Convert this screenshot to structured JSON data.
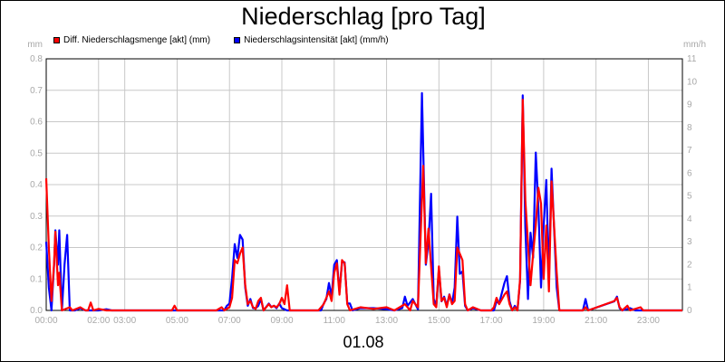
{
  "chart_data": {
    "type": "line",
    "title": "Niederschlag [pro Tag]",
    "xcaption": "01.08",
    "y_left": {
      "unit": "mm",
      "ylim": [
        0,
        0.8
      ],
      "ticks": [
        "0.0",
        "0.1",
        "0.2",
        "0.3",
        "0.4",
        "0.5",
        "0.6",
        "0.7",
        "0.8"
      ]
    },
    "y_right": {
      "unit": "mm/h",
      "ylim": [
        0,
        11
      ],
      "ticks": [
        "0",
        "1",
        "2",
        "3",
        "4",
        "5",
        "6",
        "7",
        "8",
        "9",
        "10",
        "11"
      ]
    },
    "x_range": [
      0,
      24.3
    ],
    "x_ticks": [
      {
        "h": 0,
        "label": "00:00"
      },
      {
        "h": 2,
        "label": "02:00"
      },
      {
        "h": 3,
        "label": "03:00"
      },
      {
        "h": 5,
        "label": "05:00"
      },
      {
        "h": 7,
        "label": "07:00"
      },
      {
        "h": 9,
        "label": "09:00"
      },
      {
        "h": 11,
        "label": "11:00"
      },
      {
        "h": 13,
        "label": "13:00"
      },
      {
        "h": 15,
        "label": "15:00"
      },
      {
        "h": 17,
        "label": "17:00"
      },
      {
        "h": 19,
        "label": "19:00"
      },
      {
        "h": 21,
        "label": "21:00"
      },
      {
        "h": 23,
        "label": "23:00"
      }
    ],
    "grid": true,
    "legend_position": "top-left",
    "series": [
      {
        "name": "Diff. Niederschlagsmenge [akt] (mm)",
        "color": "#ff0000",
        "axis": "left",
        "points": [
          [
            0,
            0.42
          ],
          [
            0.1,
            0.2
          ],
          [
            0.2,
            0.03
          ],
          [
            0.3,
            0.15
          ],
          [
            0.35,
            0.25
          ],
          [
            0.45,
            0.08
          ],
          [
            0.5,
            0.12
          ],
          [
            0.6,
            0
          ],
          [
            0.9,
            0.01
          ],
          [
            1.0,
            0
          ],
          [
            1.3,
            0.01
          ],
          [
            1.5,
            0
          ],
          [
            1.6,
            0
          ],
          [
            1.7,
            0.025
          ],
          [
            1.8,
            0
          ],
          [
            2.0,
            0.005
          ],
          [
            2.3,
            0
          ],
          [
            4.8,
            0
          ],
          [
            4.9,
            0.015
          ],
          [
            5.0,
            0
          ],
          [
            6.5,
            0
          ],
          [
            6.7,
            0.01
          ],
          [
            6.8,
            0
          ],
          [
            7.0,
            0.01
          ],
          [
            7.1,
            0.04
          ],
          [
            7.2,
            0.16
          ],
          [
            7.3,
            0.15
          ],
          [
            7.4,
            0.18
          ],
          [
            7.5,
            0.2
          ],
          [
            7.6,
            0.08
          ],
          [
            7.7,
            0.02
          ],
          [
            7.8,
            0.03
          ],
          [
            7.9,
            0.01
          ],
          [
            8.0,
            0.005
          ],
          [
            8.1,
            0.03
          ],
          [
            8.2,
            0.04
          ],
          [
            8.3,
            0
          ],
          [
            8.5,
            0.02
          ],
          [
            8.6,
            0.01
          ],
          [
            8.7,
            0.015
          ],
          [
            8.8,
            0.01
          ],
          [
            8.9,
            0.02
          ],
          [
            9.0,
            0.04
          ],
          [
            9.1,
            0.02
          ],
          [
            9.2,
            0.08
          ],
          [
            9.3,
            0
          ],
          [
            9.5,
            0
          ],
          [
            10.4,
            0
          ],
          [
            10.6,
            0.02
          ],
          [
            10.7,
            0.04
          ],
          [
            10.8,
            0.06
          ],
          [
            10.9,
            0.03
          ],
          [
            11.0,
            0.12
          ],
          [
            11.1,
            0.15
          ],
          [
            11.2,
            0.05
          ],
          [
            11.3,
            0.16
          ],
          [
            11.4,
            0.15
          ],
          [
            11.5,
            0.02
          ],
          [
            11.6,
            0
          ],
          [
            12.0,
            0.01
          ],
          [
            12.5,
            0.005
          ],
          [
            13.0,
            0.01
          ],
          [
            13.3,
            0
          ],
          [
            13.7,
            0.02
          ],
          [
            13.9,
            0
          ],
          [
            14.0,
            0.03
          ],
          [
            14.2,
            0.01
          ],
          [
            14.4,
            0.46
          ],
          [
            14.5,
            0.15
          ],
          [
            14.6,
            0.26
          ],
          [
            14.7,
            0.14
          ],
          [
            14.8,
            0.02
          ],
          [
            14.9,
            0.01
          ],
          [
            15.0,
            0.14
          ],
          [
            15.1,
            0.03
          ],
          [
            15.2,
            0.04
          ],
          [
            15.3,
            0.01
          ],
          [
            15.4,
            0.05
          ],
          [
            15.5,
            0.02
          ],
          [
            15.6,
            0.03
          ],
          [
            15.7,
            0.2
          ],
          [
            15.8,
            0.18
          ],
          [
            15.9,
            0.16
          ],
          [
            16.0,
            0.02
          ],
          [
            16.1,
            0
          ],
          [
            16.3,
            0.01
          ],
          [
            16.6,
            0
          ],
          [
            17.0,
            0
          ],
          [
            17.1,
            0.01
          ],
          [
            17.2,
            0.04
          ],
          [
            17.3,
            0.02
          ],
          [
            17.5,
            0.05
          ],
          [
            17.6,
            0.06
          ],
          [
            17.7,
            0.02
          ],
          [
            17.8,
            0
          ],
          [
            17.9,
            0.01
          ],
          [
            18.0,
            0
          ],
          [
            18.1,
            0.1
          ],
          [
            18.2,
            0.67
          ],
          [
            18.3,
            0.35
          ],
          [
            18.5,
            0.08
          ],
          [
            18.6,
            0.18
          ],
          [
            18.7,
            0.27
          ],
          [
            18.8,
            0.39
          ],
          [
            18.9,
            0.34
          ],
          [
            19.0,
            0.1
          ],
          [
            19.1,
            0.27
          ],
          [
            19.2,
            0.06
          ],
          [
            19.3,
            0.41
          ],
          [
            19.4,
            0.27
          ],
          [
            19.5,
            0.12
          ],
          [
            19.6,
            0
          ],
          [
            20.5,
            0
          ],
          [
            20.6,
            0.01
          ],
          [
            20.7,
            0
          ],
          [
            21.7,
            0.03
          ],
          [
            21.8,
            0.04
          ],
          [
            21.9,
            0.01
          ],
          [
            22.0,
            0
          ],
          [
            22.2,
            0.015
          ],
          [
            22.3,
            0
          ],
          [
            22.5,
            0.005
          ],
          [
            22.7,
            0.01
          ],
          [
            22.8,
            0
          ],
          [
            24.3,
            0
          ]
        ]
      },
      {
        "name": "Niederschlagsintensität [akt] (mm/h)",
        "color": "#0000ff",
        "axis": "right",
        "points": [
          [
            0,
            3.0
          ],
          [
            0.1,
            1.0
          ],
          [
            0.2,
            0
          ],
          [
            0.25,
            1.0
          ],
          [
            0.3,
            2.0
          ],
          [
            0.35,
            3.5
          ],
          [
            0.45,
            2.0
          ],
          [
            0.5,
            3.5
          ],
          [
            0.6,
            0
          ],
          [
            0.7,
            2.0
          ],
          [
            0.8,
            3.3
          ],
          [
            0.9,
            0
          ],
          [
            1.1,
            0
          ],
          [
            1.3,
            0.1
          ],
          [
            1.5,
            0
          ],
          [
            2.0,
            0
          ],
          [
            2.3,
            0.05
          ],
          [
            2.5,
            0
          ],
          [
            6.8,
            0
          ],
          [
            6.9,
            0.2
          ],
          [
            7.0,
            0.3
          ],
          [
            7.1,
            1.4
          ],
          [
            7.2,
            2.9
          ],
          [
            7.3,
            2.3
          ],
          [
            7.4,
            3.3
          ],
          [
            7.5,
            3.1
          ],
          [
            7.6,
            1.0
          ],
          [
            7.7,
            0.2
          ],
          [
            7.8,
            0.5
          ],
          [
            7.9,
            0.1
          ],
          [
            8.0,
            0.1
          ],
          [
            8.1,
            0.2
          ],
          [
            8.2,
            0.5
          ],
          [
            8.3,
            0
          ],
          [
            8.5,
            0.3
          ],
          [
            8.6,
            0.15
          ],
          [
            8.7,
            0.2
          ],
          [
            8.8,
            0.1
          ],
          [
            8.9,
            0.3
          ],
          [
            9.0,
            0.1
          ],
          [
            9.1,
            0.05
          ],
          [
            9.2,
            0
          ],
          [
            10.5,
            0
          ],
          [
            10.6,
            0.3
          ],
          [
            10.7,
            0.5
          ],
          [
            10.8,
            1.2
          ],
          [
            10.9,
            0.6
          ],
          [
            11.0,
            2.0
          ],
          [
            11.1,
            2.2
          ],
          [
            11.2,
            0.8
          ],
          [
            11.3,
            2.1
          ],
          [
            11.4,
            2.1
          ],
          [
            11.5,
            0.3
          ],
          [
            11.6,
            0.3
          ],
          [
            11.7,
            0
          ],
          [
            12.0,
            0.1
          ],
          [
            12.5,
            0.1
          ],
          [
            13.0,
            0.05
          ],
          [
            13.3,
            0
          ],
          [
            13.6,
            0.1
          ],
          [
            13.7,
            0.6
          ],
          [
            13.8,
            0.2
          ],
          [
            14.0,
            0.5
          ],
          [
            14.2,
            0.05
          ],
          [
            14.35,
            9.5
          ],
          [
            14.5,
            2.0
          ],
          [
            14.6,
            3.0
          ],
          [
            14.7,
            5.1
          ],
          [
            14.8,
            0.5
          ],
          [
            14.9,
            0.2
          ],
          [
            15.0,
            1.8
          ],
          [
            15.1,
            0.4
          ],
          [
            15.2,
            0.6
          ],
          [
            15.3,
            0.2
          ],
          [
            15.4,
            0.7
          ],
          [
            15.5,
            0.3
          ],
          [
            15.6,
            1.0
          ],
          [
            15.7,
            4.1
          ],
          [
            15.8,
            1.6
          ],
          [
            15.9,
            1.7
          ],
          [
            16.0,
            0.2
          ],
          [
            16.1,
            0
          ],
          [
            16.3,
            0.1
          ],
          [
            16.6,
            0
          ],
          [
            17.1,
            0
          ],
          [
            17.2,
            0.4
          ],
          [
            17.3,
            0.3
          ],
          [
            17.5,
            1.2
          ],
          [
            17.6,
            1.5
          ],
          [
            17.7,
            0.4
          ],
          [
            17.8,
            0
          ],
          [
            17.9,
            0.2
          ],
          [
            18.0,
            0
          ],
          [
            18.1,
            1.3
          ],
          [
            18.2,
            9.4
          ],
          [
            18.3,
            3.6
          ],
          [
            18.4,
            0.5
          ],
          [
            18.5,
            3.4
          ],
          [
            18.6,
            2.3
          ],
          [
            18.7,
            6.9
          ],
          [
            18.8,
            4.5
          ],
          [
            18.9,
            1.0
          ],
          [
            19.0,
            3.7
          ],
          [
            19.1,
            5.7
          ],
          [
            19.2,
            1.4
          ],
          [
            19.3,
            6.2
          ],
          [
            19.4,
            3.6
          ],
          [
            19.5,
            1.0
          ],
          [
            19.6,
            0
          ],
          [
            20.5,
            0
          ],
          [
            20.6,
            0.5
          ],
          [
            20.7,
            0
          ],
          [
            21.7,
            0.4
          ],
          [
            21.8,
            0.6
          ],
          [
            21.9,
            0.1
          ],
          [
            22.0,
            0
          ],
          [
            22.3,
            0.1
          ],
          [
            22.5,
            0
          ],
          [
            24.3,
            0
          ]
        ]
      }
    ]
  }
}
